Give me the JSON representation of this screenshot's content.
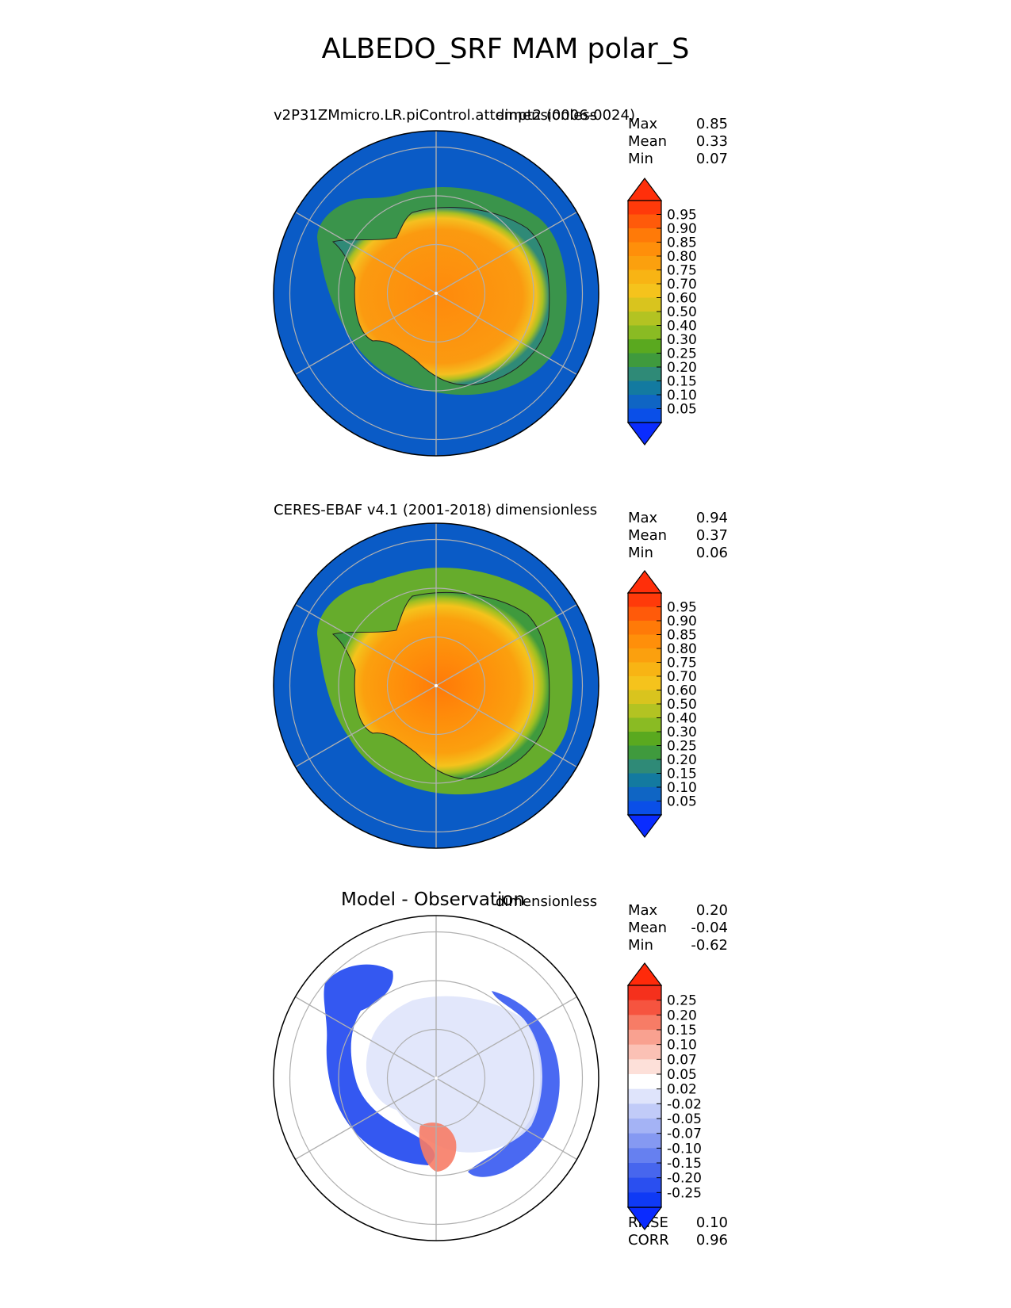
{
  "title": "ALBEDO_SRF MAM polar_S",
  "panels": [
    {
      "left_title": "v2P31ZMmicro.LR.piControl.attempt2 (0006-0024)",
      "right_title": "dimensionless",
      "stats": [
        {
          "label": "Max",
          "value": "0.85"
        },
        {
          "label": "Mean",
          "value": "0.33"
        },
        {
          "label": "Min",
          "value": "0.07"
        }
      ],
      "colorbar": {
        "ticks": [
          "0.95",
          "0.90",
          "0.85",
          "0.80",
          "0.75",
          "0.70",
          "0.60",
          "0.50",
          "0.40",
          "0.30",
          "0.25",
          "0.20",
          "0.15",
          "0.10",
          "0.05"
        ],
        "colors": [
          "#ff3a0a",
          "#ff5a0a",
          "#ff7a08",
          "#ff8f0a",
          "#fba00e",
          "#f8b414",
          "#f5c31c",
          "#d9c41e",
          "#b3c322",
          "#8abb23",
          "#5aa91f",
          "#3f9a3d",
          "#2f8a77",
          "#137aa0",
          "#0f65c4",
          "#0a4fe8"
        ],
        "over_color": "#ff2f0a",
        "under_color": "#0a2cff"
      }
    },
    {
      "left_title": "CERES-EBAF v4.1 (2001-2018)",
      "right_title": "dimensionless",
      "stats": [
        {
          "label": "Max",
          "value": "0.94"
        },
        {
          "label": "Mean",
          "value": "0.37"
        },
        {
          "label": "Min",
          "value": "0.06"
        }
      ],
      "colorbar": {
        "ticks": [
          "0.95",
          "0.90",
          "0.85",
          "0.80",
          "0.75",
          "0.70",
          "0.60",
          "0.50",
          "0.40",
          "0.30",
          "0.25",
          "0.20",
          "0.15",
          "0.10",
          "0.05"
        ],
        "colors": [
          "#ff3a0a",
          "#ff5a0a",
          "#ff7a08",
          "#ff8f0a",
          "#fba00e",
          "#f8b414",
          "#f5c31c",
          "#d9c41e",
          "#b3c322",
          "#8abb23",
          "#5aa91f",
          "#3f9a3d",
          "#2f8a77",
          "#137aa0",
          "#0f65c4",
          "#0a4fe8"
        ],
        "over_color": "#ff2f0a",
        "under_color": "#0a2cff"
      }
    },
    {
      "left_title": "Model - Observation",
      "right_title": "dimensionless",
      "stats": [
        {
          "label": "Max",
          "value": "0.20"
        },
        {
          "label": "Mean",
          "value": "-0.04"
        },
        {
          "label": "Min",
          "value": "-0.62"
        }
      ],
      "bottom_stats": [
        {
          "label": "RMSE",
          "value": "0.10"
        },
        {
          "label": "CORR",
          "value": "0.96"
        }
      ],
      "colorbar": {
        "ticks": [
          "0.25",
          "0.20",
          "0.15",
          "0.10",
          "0.07",
          "0.05",
          "0.02",
          "-0.02",
          "-0.05",
          "-0.07",
          "-0.10",
          "-0.15",
          "-0.20",
          "-0.25"
        ],
        "colors": [
          "#f5301c",
          "#f6543f",
          "#f77c66",
          "#f9a190",
          "#fbc1b5",
          "#fde0d9",
          "#ffffff",
          "#dfe4fb",
          "#c1cbf8",
          "#a4b3f5",
          "#8599f2",
          "#6680f0",
          "#4766ee",
          "#2a4ff0",
          "#0f3af5"
        ],
        "over_color": "#ff2a0a",
        "under_color": "#0a2bff"
      }
    }
  ],
  "chart_data": [
    {
      "type": "heatmap",
      "projection": "south-polar-stereographic",
      "title": "v2P31ZMmicro.LR.piControl.attempt2 (0006-0024)",
      "units": "dimensionless",
      "summary": {
        "max": 0.85,
        "mean": 0.33,
        "min": 0.07
      },
      "levels": [
        0.05,
        0.1,
        0.15,
        0.2,
        0.25,
        0.3,
        0.4,
        0.5,
        0.6,
        0.7,
        0.75,
        0.8,
        0.85,
        0.9,
        0.95
      ]
    },
    {
      "type": "heatmap",
      "projection": "south-polar-stereographic",
      "title": "CERES-EBAF v4.1 (2001-2018)",
      "units": "dimensionless",
      "summary": {
        "max": 0.94,
        "mean": 0.37,
        "min": 0.06
      },
      "levels": [
        0.05,
        0.1,
        0.15,
        0.2,
        0.25,
        0.3,
        0.4,
        0.5,
        0.6,
        0.7,
        0.75,
        0.8,
        0.85,
        0.9,
        0.95
      ]
    },
    {
      "type": "heatmap",
      "projection": "south-polar-stereographic",
      "title": "Model - Observation",
      "units": "dimensionless",
      "summary": {
        "max": 0.2,
        "mean": -0.04,
        "min": -0.62,
        "rmse": 0.1,
        "corr": 0.96
      },
      "levels": [
        -0.25,
        -0.2,
        -0.15,
        -0.1,
        -0.07,
        -0.05,
        -0.02,
        0.02,
        0.05,
        0.07,
        0.1,
        0.15,
        0.2,
        0.25
      ]
    }
  ]
}
